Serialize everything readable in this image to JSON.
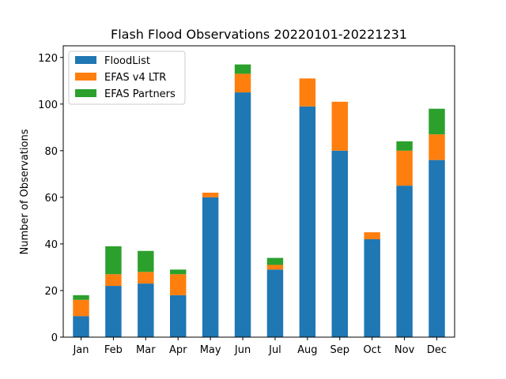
{
  "chart_data": {
    "type": "bar",
    "stacked": true,
    "title": "Flash Flood Observations 20220101-20221231",
    "xlabel": "",
    "ylabel": "Number of Observations",
    "ylim": [
      0,
      125
    ],
    "yticks": [
      0,
      20,
      40,
      60,
      80,
      100,
      120
    ],
    "grid": false,
    "legend_position": "top-left",
    "categories": [
      "Jan",
      "Feb",
      "Mar",
      "Apr",
      "May",
      "Jun",
      "Jul",
      "Aug",
      "Sep",
      "Oct",
      "Nov",
      "Dec"
    ],
    "series": [
      {
        "name": "FloodList",
        "color": "#1f77b4",
        "values": [
          9,
          22,
          23,
          18,
          60,
          105,
          29,
          99,
          80,
          42,
          65,
          76
        ]
      },
      {
        "name": "EFAS v4 LTR",
        "color": "#ff7f0e",
        "values": [
          7,
          5,
          5,
          9,
          2,
          8,
          2,
          12,
          21,
          3,
          15,
          11
        ]
      },
      {
        "name": "EFAS Partners",
        "color": "#2ca02c",
        "values": [
          2,
          12,
          9,
          2,
          0,
          4,
          3,
          0,
          0,
          0,
          4,
          11
        ]
      }
    ]
  }
}
